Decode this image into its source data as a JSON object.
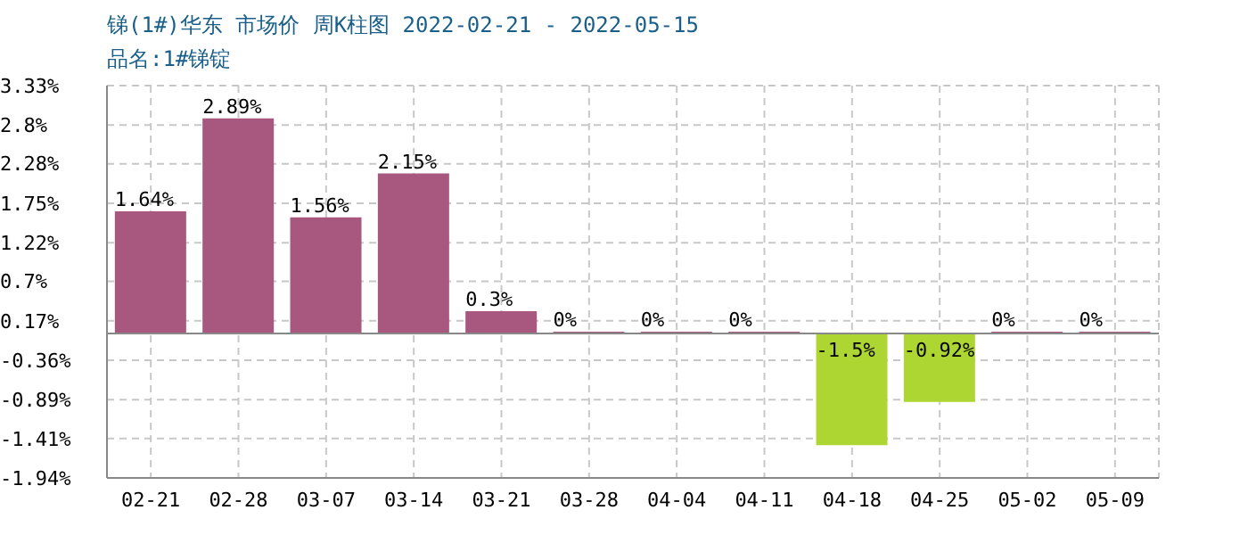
{
  "chart_data": {
    "type": "bar",
    "title": "锑(1#)华东 市场价 周K柱图 2022-02-21 - 2022-05-15",
    "subtitle": "品名:1#锑锭",
    "categories": [
      "02-21",
      "02-28",
      "03-07",
      "03-14",
      "03-21",
      "03-28",
      "04-04",
      "04-11",
      "04-18",
      "04-25",
      "05-02",
      "05-09"
    ],
    "values": [
      1.64,
      2.89,
      1.56,
      2.15,
      0.3,
      0,
      0,
      0,
      -1.5,
      -0.92,
      0,
      0
    ],
    "value_labels": [
      "1.64%",
      "2.89%",
      "1.56%",
      "2.15%",
      "0.3%",
      "0%",
      "0%",
      "0%",
      "-1.5%",
      "-0.92%",
      "0%",
      "0%"
    ],
    "colors": [
      "#a8577f",
      "#a8577f",
      "#a8577f",
      "#a8577f",
      "#a8577f",
      "#a8577f",
      "#a8577f",
      "#a8577f",
      "#add633",
      "#add633",
      "#a8577f",
      "#a8577f"
    ],
    "ylim": [
      -1.94,
      3.33
    ],
    "yticks": [
      {
        "value": 3.33,
        "label": "3.33%"
      },
      {
        "value": 2.8,
        "label": "2.8%"
      },
      {
        "value": 2.28,
        "label": "2.28%"
      },
      {
        "value": 1.75,
        "label": "1.75%"
      },
      {
        "value": 1.22,
        "label": "1.22%"
      },
      {
        "value": 0.7,
        "label": "0.7%"
      },
      {
        "value": 0.17,
        "label": "0.17%"
      },
      {
        "value": -0.36,
        "label": "-0.36%"
      },
      {
        "value": -0.89,
        "label": "-0.89%"
      },
      {
        "value": -1.41,
        "label": "-1.41%"
      },
      {
        "value": -1.94,
        "label": "-1.94%"
      }
    ],
    "grid": true
  }
}
